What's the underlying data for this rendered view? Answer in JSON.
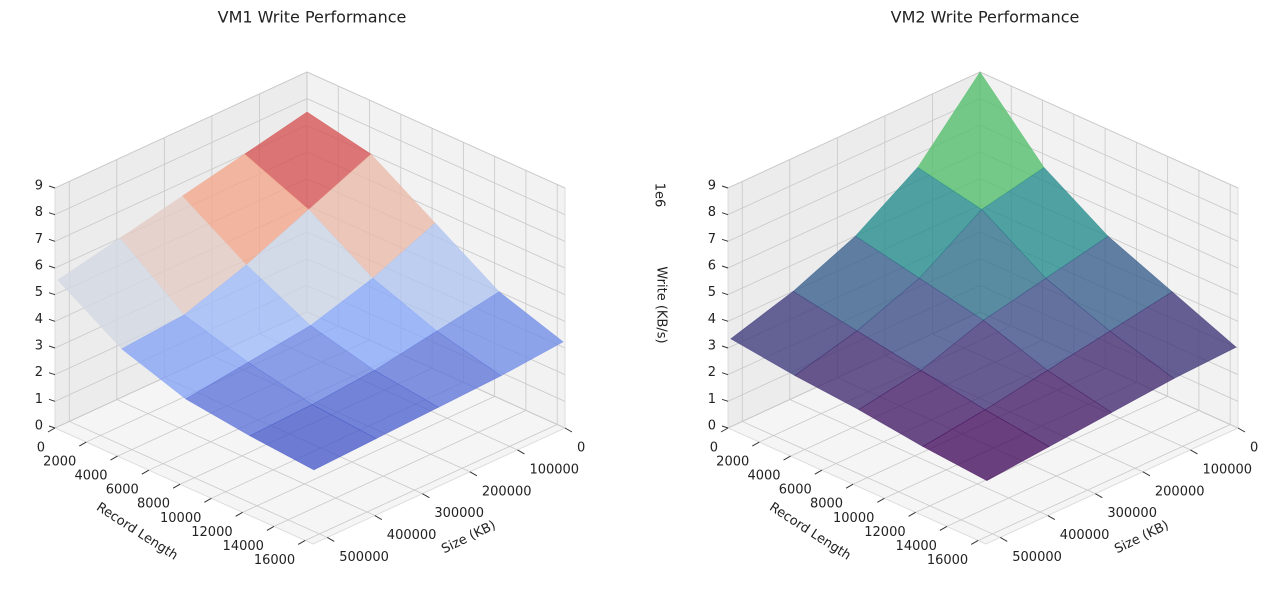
{
  "chart_data": [
    {
      "type": "surface",
      "title": "VM1 Write Performance",
      "colormap": "coolwarm",
      "xlabel": "Size (KB)",
      "ylabel": "Record Length",
      "x": [
        64,
        131072,
        262144,
        393216,
        524288
      ],
      "y": [
        4,
        4096,
        8192,
        12288,
        16384
      ],
      "z": [
        [
          7.5,
          7.0,
          6.5,
          6.0,
          5.5
        ],
        [
          7.0,
          6.0,
          5.0,
          4.2,
          4.0
        ],
        [
          5.5,
          4.5,
          3.8,
          3.5,
          3.2
        ],
        [
          4.0,
          3.6,
          3.2,
          3.0,
          2.9
        ],
        [
          3.2,
          3.0,
          2.9,
          2.8,
          2.7
        ]
      ],
      "xlim": [
        0,
        530000
      ],
      "ylim": [
        0,
        16500
      ],
      "zlim": [
        0,
        9
      ],
      "xticks": [
        0,
        100000,
        200000,
        300000,
        400000,
        500000
      ],
      "yticks": [
        0,
        2000,
        4000,
        6000,
        8000,
        10000,
        12000,
        14000,
        16000
      ],
      "zticks": [
        0,
        1,
        2,
        3,
        4,
        5,
        6,
        7,
        8,
        9
      ],
      "grid": true
    },
    {
      "type": "surface",
      "title": "VM2 Write Performance",
      "colormap": "viridis",
      "xlabel": "Size (KB)",
      "ylabel": "Record Length",
      "zlabel": "Write (KB/s)",
      "z_offset_label": "1e6",
      "x": [
        64,
        131072,
        262144,
        393216,
        524288
      ],
      "y": [
        4,
        4096,
        8192,
        12288,
        16384
      ],
      "z": [
        [
          9.0,
          6.5,
          5.0,
          4.0,
          3.3
        ],
        [
          6.5,
          6.0,
          4.5,
          3.6,
          3.0
        ],
        [
          5.0,
          4.5,
          4.0,
          3.2,
          2.8
        ],
        [
          4.0,
          3.6,
          3.2,
          2.8,
          2.5
        ],
        [
          3.0,
          2.9,
          2.7,
          2.5,
          2.3
        ]
      ],
      "xlim": [
        0,
        530000
      ],
      "ylim": [
        0,
        16500
      ],
      "zlim": [
        0,
        9
      ],
      "xticks": [
        0,
        100000,
        200000,
        300000,
        400000,
        500000
      ],
      "yticks": [
        0,
        2000,
        4000,
        6000,
        8000,
        10000,
        12000,
        14000,
        16000
      ],
      "zticks": [
        0,
        1,
        2,
        3,
        4,
        5,
        6,
        7,
        8,
        9
      ],
      "grid": true
    }
  ]
}
